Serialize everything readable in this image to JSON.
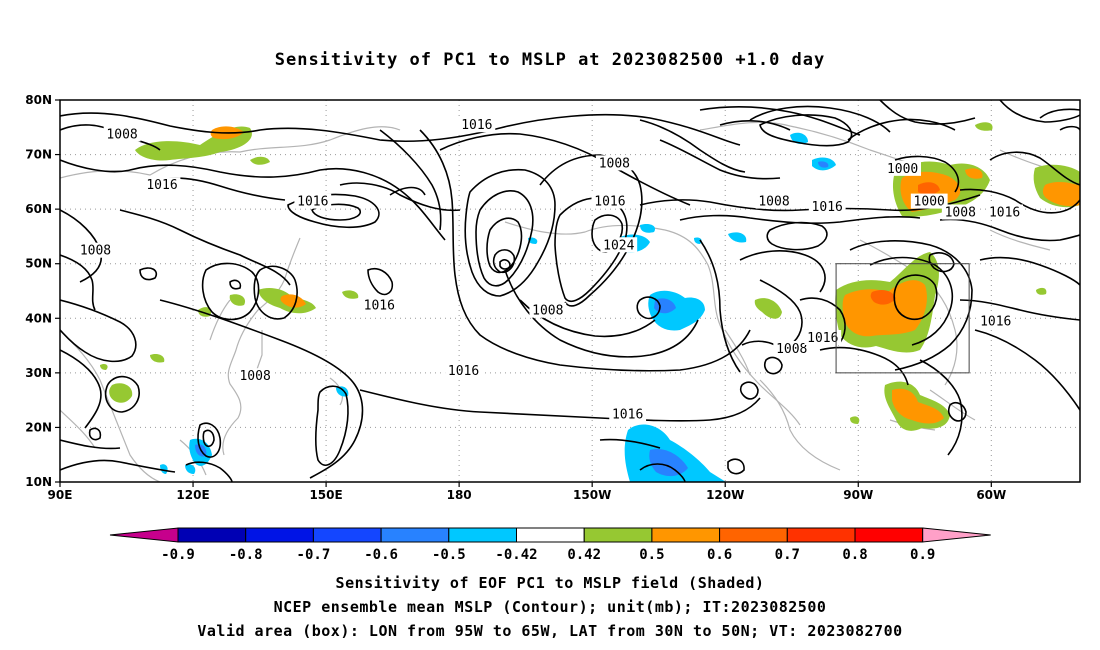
{
  "title": "Sensitivity of PC1 to MSLP at 2023082500 +1.0 day",
  "lat_labels": [
    "80N",
    "70N",
    "60N",
    "50N",
    "40N",
    "30N",
    "20N",
    "10N"
  ],
  "lon_labels": [
    "90E",
    "120E",
    "150E",
    "180",
    "150W",
    "120W",
    "90W",
    "60W"
  ],
  "contour_labels": [
    {
      "text": "1008",
      "lon": 104,
      "lat": 73.5
    },
    {
      "text": "1016",
      "lon": 113,
      "lat": 64.2
    },
    {
      "text": "1008",
      "lon": 98,
      "lat": 52.2
    },
    {
      "text": "1016",
      "lon": 147,
      "lat": 61.2
    },
    {
      "text": "1016",
      "lon": 184,
      "lat": 75.2
    },
    {
      "text": "1008",
      "lon": 215,
      "lat": 68.2
    },
    {
      "text": "1016",
      "lon": 214,
      "lat": 61.2
    },
    {
      "text": "1024",
      "lon": 216,
      "lat": 53.2
    },
    {
      "text": "1008",
      "lon": 200,
      "lat": 41.2
    },
    {
      "text": "1016",
      "lon": 162,
      "lat": 42.2
    },
    {
      "text": "1008",
      "lon": 134,
      "lat": 29.2
    },
    {
      "text": "1016",
      "lon": 181,
      "lat": 30.2
    },
    {
      "text": "1016",
      "lon": 218,
      "lat": 22.2
    },
    {
      "text": "1008",
      "lon": 251,
      "lat": 61.2
    },
    {
      "text": "1016",
      "lon": 263,
      "lat": 60.2
    },
    {
      "text": "1000",
      "lon": 280,
      "lat": 67.2
    },
    {
      "text": "1000",
      "lon": 286,
      "lat": 61.2
    },
    {
      "text": "1008",
      "lon": 293,
      "lat": 59.2
    },
    {
      "text": "1016",
      "lon": 303,
      "lat": 59.2
    },
    {
      "text": "1008",
      "lon": 255,
      "lat": 34.2
    },
    {
      "text": "1016",
      "lon": 262,
      "lat": 36.2
    },
    {
      "text": "1016",
      "lon": 301,
      "lat": 39.2
    }
  ],
  "box": {
    "lon_min": 265,
    "lon_max": 295,
    "lat_min": 30,
    "lat_max": 50
  },
  "colorbar": {
    "labels": [
      "-0.9",
      "-0.8",
      "-0.7",
      "-0.6",
      "-0.5",
      "-0.42",
      "0.42",
      "0.5",
      "0.6",
      "0.7",
      "0.8",
      "0.9"
    ],
    "colors": [
      "#c6008c",
      "#0000b4",
      "#0014e6",
      "#1446ff",
      "#2882ff",
      "#00c8ff",
      "#ffffff",
      "#96c832",
      "#ff9600",
      "#ff6400",
      "#ff3200",
      "#ff0000",
      "#ffa0c8"
    ]
  },
  "footer": {
    "line1": "Sensitivity of EOF PC1 to MSLP field (Shaded)",
    "line2": "NCEP ensemble mean MSLP (Contour); unit(mb); IT:2023082500",
    "line3": "Valid area (box): LON from 95W to 65W, LAT from 30N to 50N; VT: 2023082700"
  }
}
